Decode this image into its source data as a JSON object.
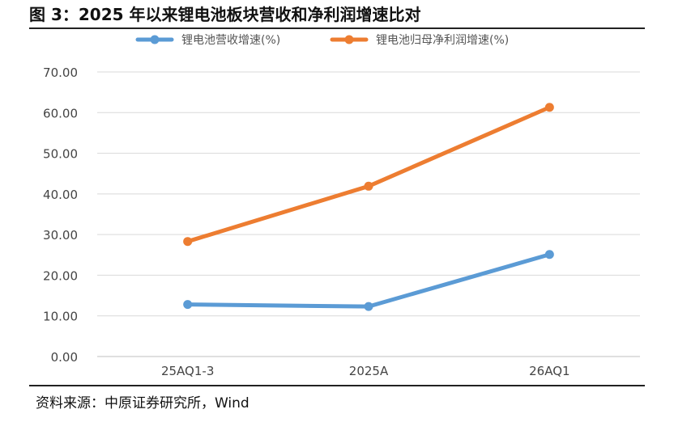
{
  "figure": {
    "title": "图 3：2025 年以来锂电池板块营收和净利润增速比对",
    "source": "资料来源：中原证券研究所，Wind"
  },
  "chart_data": {
    "type": "line",
    "categories": [
      "25AQ1-3",
      "2025A",
      "26AQ1"
    ],
    "series": [
      {
        "name": "锂电池营收增速(%)",
        "color": "#5b9bd5",
        "values": [
          12.8,
          12.3,
          25.1
        ]
      },
      {
        "name": "锂电池归母净利润增速(%)",
        "color": "#ed7d31",
        "values": [
          28.3,
          41.9,
          61.3
        ]
      }
    ],
    "ylim": [
      0,
      70
    ],
    "yticks": [
      "0.00",
      "10.00",
      "20.00",
      "30.00",
      "40.00",
      "50.00",
      "60.00",
      "70.00"
    ],
    "legend_position": "top",
    "grid": true
  }
}
